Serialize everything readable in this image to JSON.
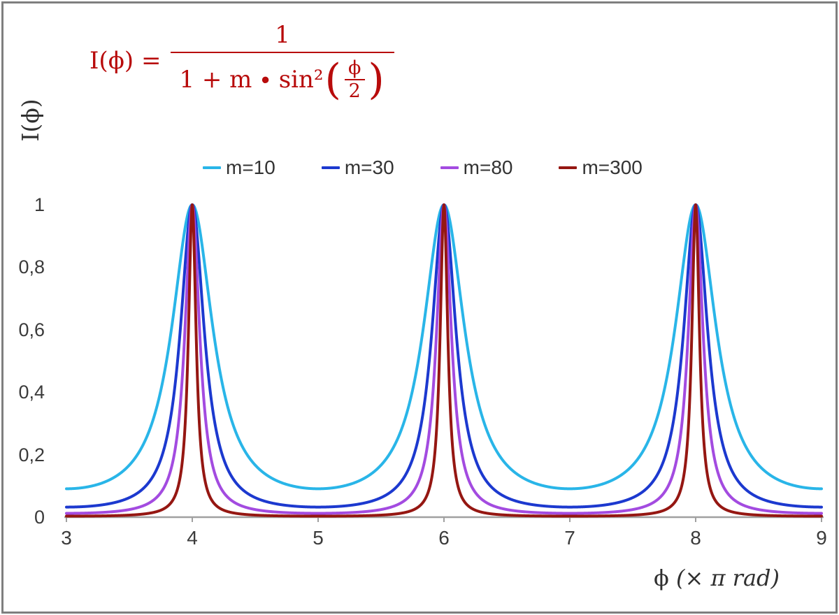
{
  "frame": {
    "border_color": "#7f7f7f"
  },
  "formula": {
    "lhs": "I(ϕ) =",
    "numerator": "1",
    "denominator_prefix": "1 + m ∙ sin²",
    "open_paren": "(",
    "inner_numerator": "ϕ",
    "inner_denominator": "2",
    "close_paren": ")",
    "color": "#b80b0b"
  },
  "chart_data": {
    "type": "line",
    "title": "",
    "function": "I(phi) = 1 / (1 + m * sin^2(phi/2)), with phi = x * pi rad",
    "xlabel": "ϕ  (× π rad)",
    "xlabel_parts": {
      "prefix": "ϕ  ",
      "suffix": "(× π rad)"
    },
    "ylabel": "I(ϕ)",
    "x_range": [
      3,
      9
    ],
    "ylim": [
      0,
      1
    ],
    "x_ticks": [
      "3",
      "4",
      "5",
      "6",
      "7",
      "8",
      "9"
    ],
    "y_ticks": [
      {
        "value": 0,
        "label": "0"
      },
      {
        "value": 0.2,
        "label": "0,2"
      },
      {
        "value": 0.4,
        "label": "0,4"
      },
      {
        "value": 0.6,
        "label": "0,6"
      },
      {
        "value": 0.8,
        "label": "0,8"
      },
      {
        "value": 1,
        "label": "1"
      }
    ],
    "series": [
      {
        "name": "m=10",
        "m": 10,
        "color": "#29b5e8",
        "peak_value": 1,
        "min_value": 0.0909
      },
      {
        "name": "m=30",
        "m": 30,
        "color": "#1c39cf",
        "peak_value": 1,
        "min_value": 0.0323
      },
      {
        "name": "m=80",
        "m": 80,
        "color": "#a34be0",
        "peak_value": 1,
        "min_value": 0.0123
      },
      {
        "name": "m=300",
        "m": 300,
        "color": "#951712",
        "peak_value": 1,
        "min_value": 0.0033
      }
    ],
    "peaks_at_x": [
      4,
      6,
      8
    ],
    "grid": false,
    "legend_position": "top",
    "axis_color": "#a0a0a0",
    "tick_label_color": "#3b3b3b"
  }
}
